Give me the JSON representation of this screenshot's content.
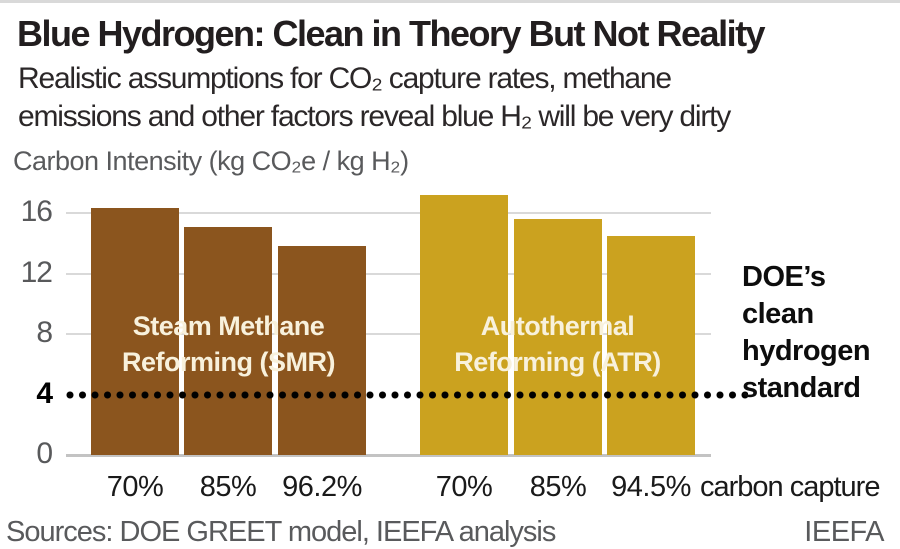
{
  "header": {
    "title": "Blue Hydrogen: Clean in Theory But Not Reality",
    "subtitle_lines": [
      "Realistic assumptions for CO₂ capture rates, methane",
      "emissions and other factors reveal blue H₂ will be very dirty"
    ]
  },
  "chart_data": {
    "type": "bar",
    "axis_title": "Carbon Intensity (kg CO₂e / kg H₂)",
    "y_ticks": [
      0,
      4,
      8,
      12,
      16
    ],
    "ylim": [
      0,
      17.7
    ],
    "grid": true,
    "groups": [
      {
        "name": "Steam Methane Reforming (SMR)",
        "label_lines": [
          "Steam Methane",
          "Reforming (SMR)"
        ],
        "abbr": "smr",
        "color": "#8B551E",
        "categories": [
          "70%",
          "85%",
          "96.2%"
        ],
        "values": [
          16.3,
          15.1,
          13.8
        ]
      },
      {
        "name": "Autothermal Reforming (ATR)",
        "label_lines": [
          "Autothermal",
          "Reforming (ATR)"
        ],
        "abbr": "atr",
        "color": "#CBA21F",
        "categories": [
          "70%",
          "85%",
          "94.5%"
        ],
        "values": [
          17.2,
          15.6,
          14.5
        ]
      }
    ],
    "x_axis_suffix": "carbon capture",
    "reference_line": {
      "value": 4,
      "style": "dotted",
      "color": "#000000",
      "label": "DOE’s clean hydrogen standard",
      "label_lines": [
        "DOE’s",
        "clean",
        "hydrogen",
        "standard"
      ]
    }
  },
  "footer": {
    "sources": "Sources: DOE GREET model, IEEFA analysis",
    "brand": "IEEFA"
  },
  "colors": {
    "smr_bar": "#8B551E",
    "atr_bar": "#CBA21F",
    "bar_label_text": "#F8F1DC",
    "gridline": "#D9D9D9",
    "axis_text": "#58595B",
    "title_text": "#221E1F",
    "reference_line": "#000000"
  }
}
